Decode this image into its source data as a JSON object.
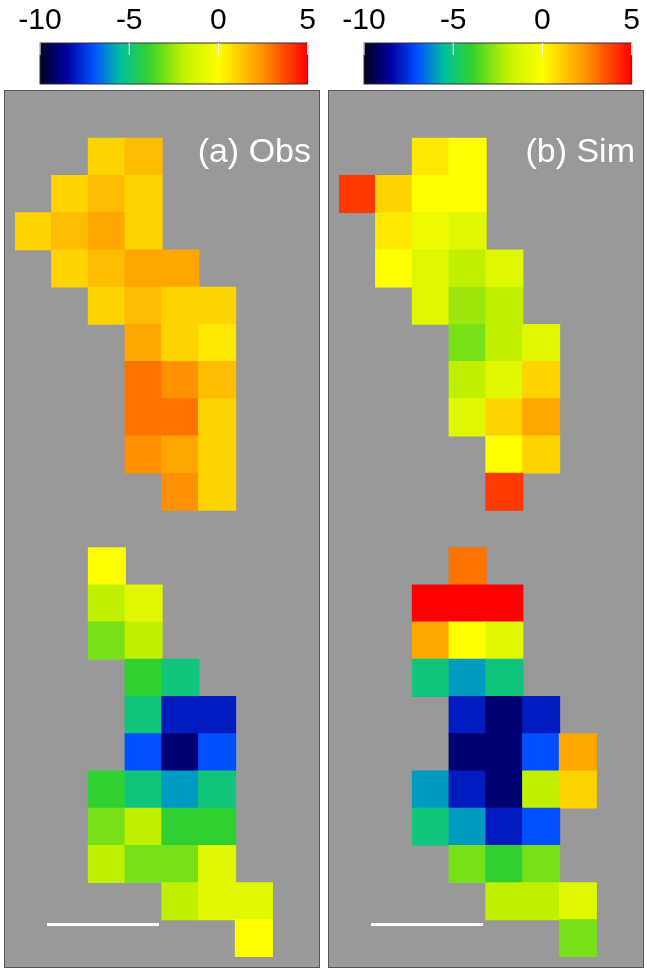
{
  "chart_data": [
    {
      "type": "heatmap",
      "title": "(a) Obs",
      "tick_labels": false,
      "colorbar_lim": [
        -10,
        5
      ],
      "colorbar_ticks": [
        -10,
        -5,
        0,
        5
      ],
      "cells": [
        [
          null,
          null,
          null,
          null,
          null,
          null,
          null,
          null
        ],
        [
          null,
          null,
          1,
          1.5,
          null,
          null,
          null,
          null
        ],
        [
          null,
          1,
          1.5,
          1,
          null,
          null,
          null,
          null
        ],
        [
          1,
          1.5,
          2,
          1,
          null,
          null,
          null,
          null
        ],
        [
          null,
          1,
          1.5,
          2,
          2,
          null,
          null,
          null
        ],
        [
          null,
          null,
          1,
          1.5,
          1,
          1,
          null,
          null
        ],
        [
          null,
          null,
          null,
          2,
          1,
          0.5,
          null,
          null
        ],
        [
          null,
          null,
          null,
          3,
          2.5,
          1.5,
          null,
          null
        ],
        [
          null,
          null,
          null,
          3,
          3,
          1,
          null,
          null
        ],
        [
          null,
          null,
          null,
          2.5,
          2,
          1,
          null,
          null
        ],
        [
          null,
          null,
          null,
          null,
          2.5,
          1,
          null,
          null
        ],
        [
          null,
          null,
          null,
          null,
          null,
          null,
          null,
          null
        ],
        [
          null,
          null,
          0,
          null,
          null,
          null,
          null,
          null
        ],
        [
          null,
          null,
          -2,
          -1,
          null,
          null,
          null,
          null
        ],
        [
          null,
          null,
          -3,
          -2,
          null,
          null,
          null,
          null
        ],
        [
          null,
          null,
          null,
          -4,
          -5,
          null,
          null,
          null
        ],
        [
          null,
          null,
          null,
          -5,
          -8,
          -8,
          null,
          null
        ],
        [
          null,
          null,
          null,
          -7,
          -9,
          -7,
          null,
          null
        ],
        [
          null,
          null,
          -4,
          -5,
          -6,
          -5,
          null,
          null
        ],
        [
          null,
          null,
          -3,
          -2,
          -4,
          -4,
          null,
          null
        ],
        [
          null,
          null,
          -2,
          -3,
          -3,
          -1,
          null,
          null
        ],
        [
          null,
          null,
          null,
          null,
          -2,
          -1,
          -1,
          null
        ],
        [
          null,
          null,
          null,
          null,
          null,
          null,
          0,
          null
        ]
      ]
    },
    {
      "type": "heatmap",
      "title": "(b) Sim",
      "tick_labels": false,
      "colorbar_lim": [
        -10,
        5
      ],
      "colorbar_ticks": [
        -10,
        -5,
        0,
        5
      ],
      "cells": [
        [
          null,
          null,
          null,
          null,
          null,
          null,
          null,
          null
        ],
        [
          null,
          null,
          0.5,
          0,
          null,
          null,
          null,
          null
        ],
        [
          4,
          1,
          0,
          0,
          null,
          null,
          null,
          null
        ],
        [
          null,
          0.5,
          -0.5,
          -1,
          null,
          null,
          null,
          null
        ],
        [
          null,
          0,
          -1,
          -2,
          -1,
          null,
          null,
          null
        ],
        [
          null,
          null,
          -1,
          -2.5,
          -2,
          null,
          null,
          null
        ],
        [
          null,
          null,
          null,
          -3,
          -2,
          -1,
          null,
          null
        ],
        [
          null,
          null,
          null,
          -2,
          -1,
          1,
          null,
          null
        ],
        [
          null,
          null,
          null,
          -1,
          1,
          2,
          null,
          null
        ],
        [
          null,
          null,
          null,
          null,
          0,
          1,
          null,
          null
        ],
        [
          null,
          null,
          null,
          null,
          4,
          null,
          null,
          null
        ],
        [
          null,
          null,
          null,
          null,
          null,
          null,
          null,
          null
        ],
        [
          null,
          null,
          null,
          3,
          null,
          null,
          null,
          null
        ],
        [
          null,
          null,
          5,
          5,
          5,
          null,
          null,
          null
        ],
        [
          null,
          null,
          2,
          0,
          -1,
          null,
          null,
          null
        ],
        [
          null,
          null,
          -5,
          -6,
          -5,
          null,
          null,
          null
        ],
        [
          null,
          null,
          null,
          -8,
          -9,
          -8,
          null,
          null
        ],
        [
          null,
          null,
          null,
          -9,
          -9,
          -7,
          2,
          null
        ],
        [
          null,
          null,
          -6,
          -8,
          -9,
          -2,
          1,
          null
        ],
        [
          null,
          null,
          -5,
          -6,
          -8,
          -7,
          null,
          null
        ],
        [
          null,
          null,
          null,
          -3,
          -4,
          -3,
          null,
          null
        ],
        [
          null,
          null,
          null,
          null,
          -2,
          -2,
          -1,
          null
        ],
        [
          null,
          null,
          null,
          null,
          null,
          null,
          -3,
          null
        ]
      ]
    }
  ]
}
